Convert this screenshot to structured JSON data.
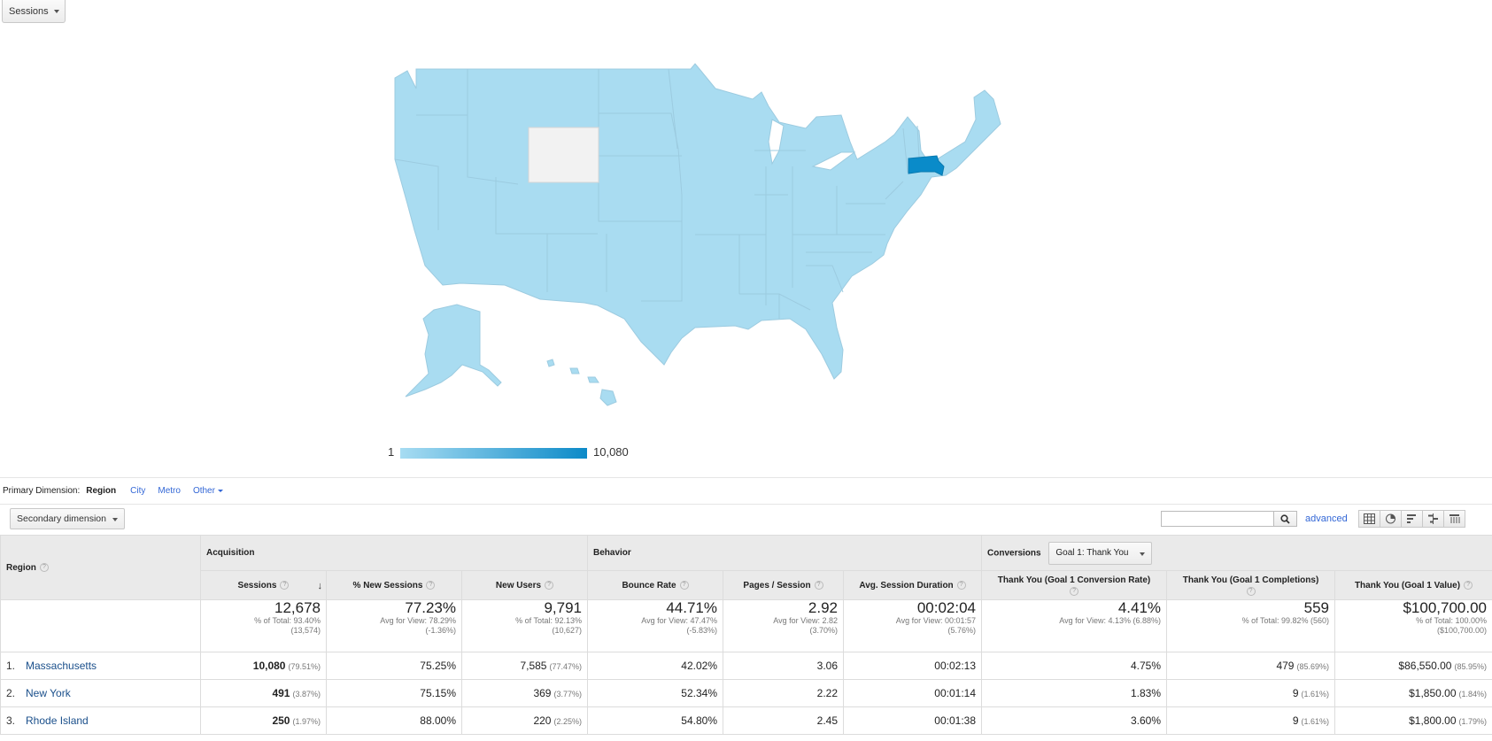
{
  "metric_selector": {
    "label": "Sessions"
  },
  "map": {
    "legend_min": "1",
    "legend_max": "10,080",
    "colors": {
      "base": "#a9dcf1",
      "highlight": "#0a8bc9",
      "no_data": "#f2f2f2",
      "border": "#9ccbe0"
    },
    "highlighted_region": "Massachusetts",
    "no_data_region": "Wyoming"
  },
  "primary_dimension": {
    "label": "Primary Dimension:",
    "active": "Region",
    "options": [
      "City",
      "Metro",
      "Other"
    ]
  },
  "secondary_dimension": {
    "label": "Secondary dimension"
  },
  "search": {
    "value": "",
    "advanced_label": "advanced"
  },
  "table": {
    "region_header": "Region",
    "groups": {
      "acquisition": "Acquisition",
      "behavior": "Behavior",
      "conversions": "Conversions",
      "goal_select": "Goal 1: Thank You"
    },
    "columns": {
      "sessions": "Sessions",
      "new_sessions": "% New Sessions",
      "new_users": "New Users",
      "bounce": "Bounce Rate",
      "pages": "Pages / Session",
      "duration": "Avg. Session Duration",
      "conv_rate": "Thank You (Goal 1 Conversion Rate)",
      "completions": "Thank You (Goal 1 Completions)",
      "value": "Thank You (Goal 1 Value)"
    },
    "totals": {
      "sessions": {
        "value": "12,678",
        "sub1": "% of Total: 93.40%",
        "sub2": "(13,574)"
      },
      "new_sessions": {
        "value": "77.23%",
        "sub1": "Avg for View: 78.29%",
        "sub2": "(-1.36%)"
      },
      "new_users": {
        "value": "9,791",
        "sub1": "% of Total: 92.13%",
        "sub2": "(10,627)"
      },
      "bounce": {
        "value": "44.71%",
        "sub1": "Avg for View: 47.47%",
        "sub2": "(-5.83%)"
      },
      "pages": {
        "value": "2.92",
        "sub1": "Avg for View: 2.82",
        "sub2": "(3.70%)"
      },
      "duration": {
        "value": "00:02:04",
        "sub1": "Avg for View: 00:01:57",
        "sub2": "(5.76%)"
      },
      "conv_rate": {
        "value": "4.41%",
        "sub1": "Avg for View: 4.13% (6.88%)",
        "sub2": ""
      },
      "completions": {
        "value": "559",
        "sub1": "% of Total: 99.82% (560)",
        "sub2": ""
      },
      "value": {
        "value": "$100,700.00",
        "sub1": "% of Total: 100.00%",
        "sub2": "($100,700.00)"
      }
    },
    "rows": [
      {
        "index": "1.",
        "region": "Massachusetts",
        "sessions": "10,080",
        "sessions_pct": "(79.51%)",
        "new_sessions": "75.25%",
        "new_users": "7,585",
        "new_users_pct": "(77.47%)",
        "bounce": "42.02%",
        "pages": "3.06",
        "duration": "00:02:13",
        "conv_rate": "4.75%",
        "completions": "479",
        "completions_pct": "(85.69%)",
        "value": "$86,550.00",
        "value_pct": "(85.95%)"
      },
      {
        "index": "2.",
        "region": "New York",
        "sessions": "491",
        "sessions_pct": "(3.87%)",
        "new_sessions": "75.15%",
        "new_users": "369",
        "new_users_pct": "(3.77%)",
        "bounce": "52.34%",
        "pages": "2.22",
        "duration": "00:01:14",
        "conv_rate": "1.83%",
        "completions": "9",
        "completions_pct": "(1.61%)",
        "value": "$1,850.00",
        "value_pct": "(1.84%)"
      },
      {
        "index": "3.",
        "region": "Rhode Island",
        "sessions": "250",
        "sessions_pct": "(1.97%)",
        "new_sessions": "88.00%",
        "new_users": "220",
        "new_users_pct": "(2.25%)",
        "bounce": "54.80%",
        "pages": "2.45",
        "duration": "00:01:38",
        "conv_rate": "3.60%",
        "completions": "9",
        "completions_pct": "(1.61%)",
        "value": "$1,800.00",
        "value_pct": "(1.79%)"
      }
    ]
  }
}
